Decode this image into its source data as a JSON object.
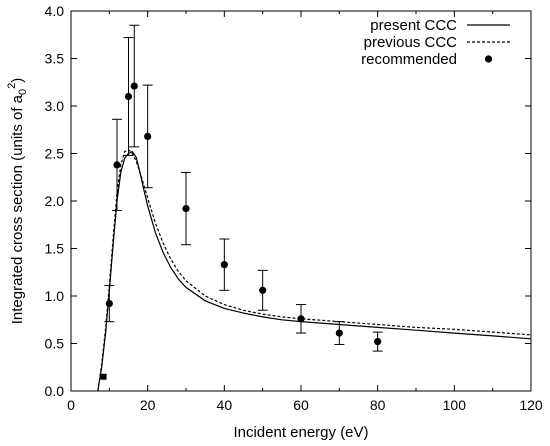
{
  "chart_data": {
    "type": "line",
    "xlabel": "Incident energy (eV)",
    "ylabel": {
      "main": "Integrated cross section (units of a",
      "sub": "0",
      "sup": "2",
      "close": ")"
    },
    "xlim": [
      0,
      120
    ],
    "ylim": [
      0,
      4.0
    ],
    "x_ticks": [
      "0",
      "20",
      "40",
      "60",
      "80",
      "100",
      "120"
    ],
    "y_ticks": [
      "0.0",
      "0.5",
      "1.0",
      "1.5",
      "2.0",
      "2.5",
      "3.0",
      "3.5",
      "4.0"
    ],
    "grid": false,
    "legend_position": "top-right",
    "series": [
      {
        "name": "present CCC",
        "style": "solid",
        "x": [
          7,
          8,
          9,
          10,
          11,
          12,
          13,
          14,
          15,
          16,
          17,
          18,
          19,
          20,
          22,
          24,
          26,
          28,
          30,
          35,
          40,
          45,
          50,
          55,
          60,
          70,
          80,
          90,
          100,
          110,
          120
        ],
        "y": [
          0.0,
          0.25,
          0.6,
          1.05,
          1.55,
          2.0,
          2.3,
          2.45,
          2.5,
          2.52,
          2.46,
          2.3,
          2.12,
          1.95,
          1.67,
          1.46,
          1.3,
          1.18,
          1.09,
          0.95,
          0.87,
          0.82,
          0.78,
          0.75,
          0.73,
          0.7,
          0.67,
          0.64,
          0.61,
          0.58,
          0.55
        ]
      },
      {
        "name": "previous CCC",
        "style": "dashed",
        "x": [
          7,
          8,
          9,
          10,
          11,
          12,
          13,
          14,
          15,
          16,
          17,
          18,
          19,
          20,
          22,
          24,
          26,
          28,
          30,
          35,
          40,
          45,
          50,
          55,
          60,
          70,
          80,
          90,
          100,
          110,
          120
        ],
        "y": [
          0.0,
          0.28,
          0.65,
          1.1,
          1.62,
          2.08,
          2.38,
          2.52,
          2.54,
          2.5,
          2.42,
          2.3,
          2.17,
          2.03,
          1.77,
          1.56,
          1.39,
          1.26,
          1.16,
          1.0,
          0.91,
          0.85,
          0.81,
          0.78,
          0.76,
          0.73,
          0.7,
          0.67,
          0.65,
          0.62,
          0.59
        ]
      },
      {
        "name": "recommended",
        "style": "points",
        "points": [
          {
            "x": 8.5,
            "y": 0.15,
            "err": 0,
            "marker": "square"
          },
          {
            "x": 10,
            "y": 0.92,
            "err": 0.19,
            "marker": "circle"
          },
          {
            "x": 12,
            "y": 2.38,
            "err": 0.48,
            "marker": "circle"
          },
          {
            "x": 15,
            "y": 3.1,
            "err": 0.62,
            "marker": "circle"
          },
          {
            "x": 16.5,
            "y": 3.21,
            "err": 0.64,
            "marker": "circle"
          },
          {
            "x": 20,
            "y": 2.68,
            "err": 0.54,
            "marker": "circle"
          },
          {
            "x": 30,
            "y": 1.92,
            "err": 0.38,
            "marker": "circle"
          },
          {
            "x": 40,
            "y": 1.33,
            "err": 0.27,
            "marker": "circle"
          },
          {
            "x": 50,
            "y": 1.06,
            "err": 0.21,
            "marker": "circle"
          },
          {
            "x": 60,
            "y": 0.76,
            "err": 0.15,
            "marker": "circle"
          },
          {
            "x": 70,
            "y": 0.61,
            "err": 0.12,
            "marker": "circle"
          },
          {
            "x": 80,
            "y": 0.52,
            "err": 0.1,
            "marker": "circle"
          }
        ]
      }
    ]
  }
}
